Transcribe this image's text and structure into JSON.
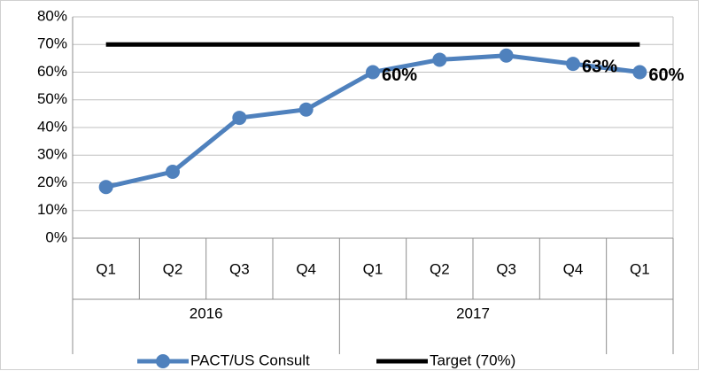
{
  "chart_data": {
    "type": "line",
    "categories": [
      "Q1",
      "Q2",
      "Q3",
      "Q4",
      "Q1",
      "Q2",
      "Q3",
      "Q4",
      "Q1"
    ],
    "groups": [
      {
        "label": "2016",
        "start": 0,
        "end": 3
      },
      {
        "label": "2017",
        "start": 4,
        "end": 7
      }
    ],
    "series": [
      {
        "name": "PACT/US Consult",
        "color": "#4f81bd",
        "values": [
          18.5,
          24,
          43.5,
          46.5,
          60,
          64.5,
          66,
          63,
          60
        ],
        "value_labels": [
          null,
          null,
          null,
          null,
          "60%",
          null,
          null,
          "63%",
          "60%"
        ]
      },
      {
        "name": "Target (70%)",
        "color": "#000000",
        "values": [
          70,
          70,
          70,
          70,
          70,
          70,
          70,
          70,
          70
        ]
      }
    ],
    "ylim": [
      0,
      80
    ],
    "yticks": [
      {
        "value": 0,
        "label": "0%"
      },
      {
        "value": 10,
        "label": "10%"
      },
      {
        "value": 20,
        "label": "20%"
      },
      {
        "value": 30,
        "label": "30%"
      },
      {
        "value": 40,
        "label": "40%"
      },
      {
        "value": 50,
        "label": "50%"
      },
      {
        "value": 60,
        "label": "60%"
      },
      {
        "value": 70,
        "label": "70%"
      },
      {
        "value": 80,
        "label": "80%"
      }
    ],
    "grid": true,
    "legend": "bottom"
  }
}
